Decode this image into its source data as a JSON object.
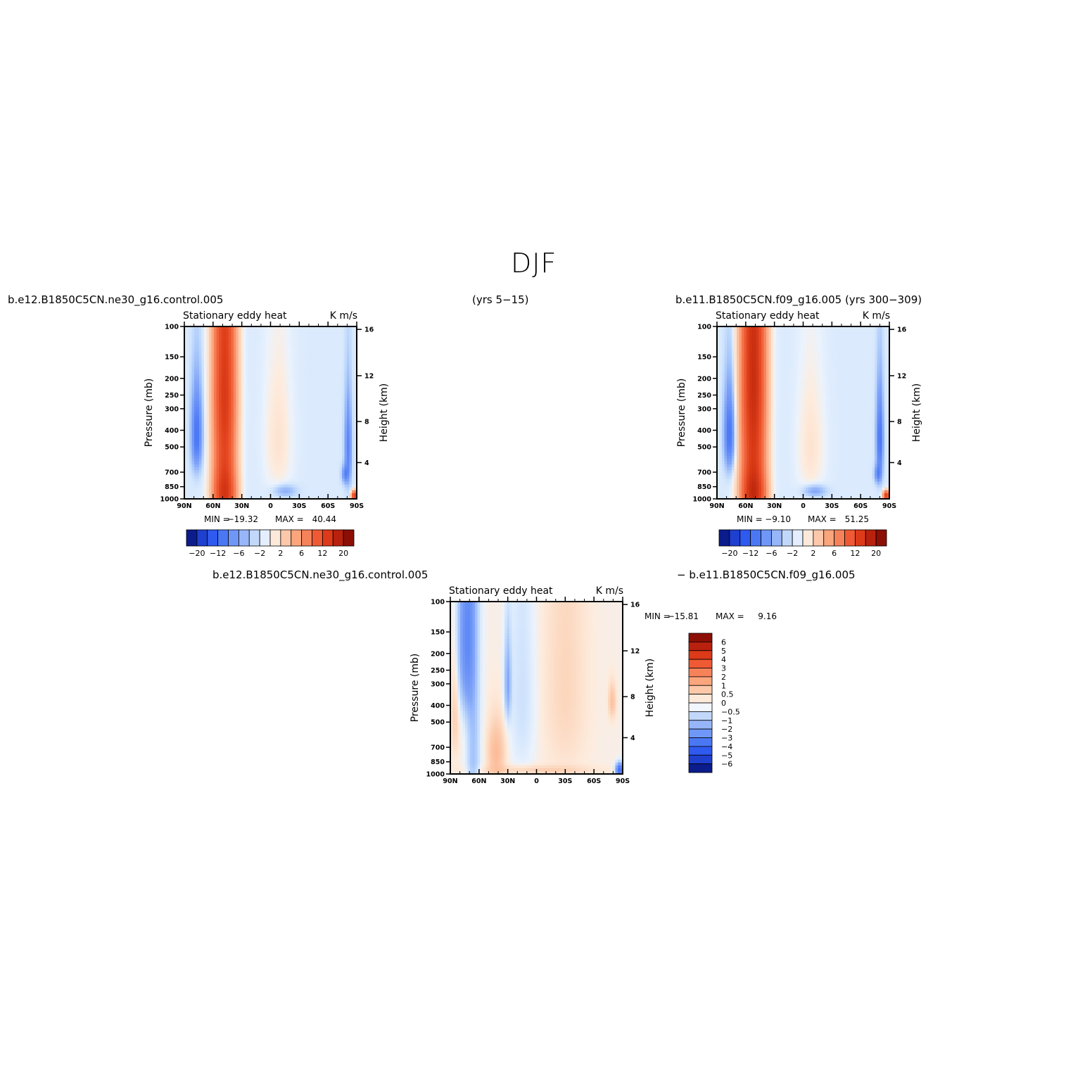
{
  "figure": {
    "title": "DJF",
    "case_left": "b.e12.B1850C5CN.ne30_g16.control.005",
    "years_left": "(yrs 5−15)",
    "case_right": "b.e11.B1850C5CN.f09_g16.005 (yrs 300−309)",
    "diff_case_a": "b.e12.B1850C5CN.ne30_g16.control.005",
    "diff_case_b": "− b.e11.B1850C5CN.f09_g16.005"
  },
  "chart_data": [
    {
      "type": "heatmap",
      "panel": "left",
      "title": "Stationary eddy heat",
      "units": "K m/s",
      "ylabel": "Pressure (mb)",
      "ylabel_right": "Height (km)",
      "xticks": [
        "90N",
        "60N",
        "30N",
        "0",
        "30S",
        "60S",
        "90S"
      ],
      "yticks": [
        "100",
        "150",
        "200",
        "250",
        "300",
        "400",
        "500",
        "700",
        "850",
        "1000"
      ],
      "yticks_right": [
        "16",
        "12",
        "8",
        "4"
      ],
      "ylim": [
        1000,
        100
      ],
      "min_label": "MIN =",
      "min": "−19.32",
      "max_label": "MAX =",
      "max": "40.44",
      "colorbar_labels": [
        "−20",
        "−12",
        "−6",
        "−2",
        "2",
        "6",
        "12",
        "20"
      ],
      "colorbar_colors": [
        "#0b1c8c",
        "#1f3fcf",
        "#2f5af0",
        "#4a78f5",
        "#6f97f7",
        "#97b6f9",
        "#c2d8fb",
        "#e4eefe",
        "#fde9da",
        "#fcc8a9",
        "#fba57d",
        "#f6825a",
        "#ef5a34",
        "#dc3a18",
        "#b8210d",
        "#8c0e05"
      ],
      "levels": [
        "-20",
        "-16",
        "-12",
        "-9",
        "-6",
        "-4",
        "-2",
        "-1",
        "1",
        "2",
        "4",
        "6",
        "9",
        "12",
        "16",
        "20"
      ]
    },
    {
      "type": "heatmap",
      "panel": "right",
      "title": "Stationary eddy heat",
      "units": "K m/s",
      "ylabel": "Pressure (mb)",
      "ylabel_right": "Height (km)",
      "xticks": [
        "90N",
        "60N",
        "30N",
        "0",
        "30S",
        "60S",
        "90S"
      ],
      "yticks": [
        "100",
        "150",
        "200",
        "250",
        "300",
        "400",
        "500",
        "700",
        "850",
        "1000"
      ],
      "yticks_right": [
        "16",
        "12",
        "8",
        "4"
      ],
      "ylim": [
        1000,
        100
      ],
      "min_label": "MIN =",
      "min": "−9.10",
      "max_label": "MAX =",
      "max": "51.25",
      "colorbar_labels": [
        "−20",
        "−12",
        "−6",
        "−2",
        "2",
        "6",
        "12",
        "20"
      ]
    },
    {
      "type": "heatmap",
      "panel": "difference",
      "title": "Stationary eddy heat",
      "units": "K m/s",
      "ylabel": "Pressure (mb)",
      "ylabel_right": "Height (km)",
      "xticks": [
        "90N",
        "60N",
        "30N",
        "0",
        "30S",
        "60S",
        "90S"
      ],
      "yticks": [
        "100",
        "150",
        "200",
        "250",
        "300",
        "400",
        "500",
        "700",
        "850",
        "1000"
      ],
      "yticks_right": [
        "16",
        "12",
        "8",
        "4"
      ],
      "ylim": [
        1000,
        100
      ],
      "min_label": "MIN =",
      "min": "−15.81",
      "max_label": "MAX =",
      "max": "9.16",
      "colorbar_labels": [
        "6",
        "5",
        "4",
        "3",
        "2",
        "1",
        "0.5",
        "0",
        "−0.5",
        "−1",
        "−2",
        "−3",
        "−4",
        "−5",
        "−6"
      ],
      "colorbar_colors": [
        "#8c0e05",
        "#b8210d",
        "#dc3a18",
        "#ef5a34",
        "#f6825a",
        "#fba57d",
        "#fcc8a9",
        "#fde9da",
        "#f2f6fe",
        "#c2d8fb",
        "#97b6f9",
        "#6f97f7",
        "#4a78f5",
        "#2f5af0",
        "#1f3fcf",
        "#0b1c8c"
      ]
    }
  ]
}
